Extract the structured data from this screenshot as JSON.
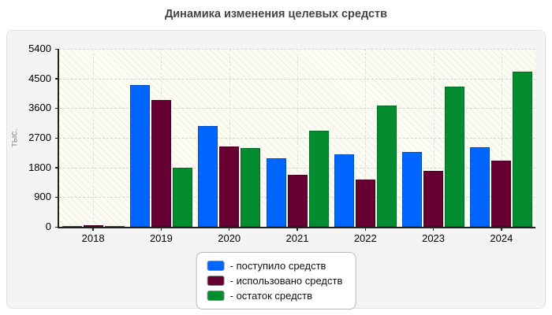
{
  "title": "Динамика изменения целевых средств",
  "y_axis_label": "тыс.",
  "colors": {
    "received": "#0066ff",
    "used": "#660033",
    "remainder": "#048c30",
    "axis": "#222222",
    "panel_bg": "#f4f4f4",
    "plot_bg": "#fdfdf3",
    "title_text": "#444444"
  },
  "legend": {
    "items": [
      {
        "label": "- поступило средств",
        "color": "#0066ff"
      },
      {
        "label": "- использовано средств",
        "color": "#660033"
      },
      {
        "label": "- остаток средств",
        "color": "#048c30"
      }
    ]
  },
  "chart_data": {
    "type": "bar",
    "title": "Динамика изменения целевых средств",
    "categories": [
      "2018",
      "2019",
      "2020",
      "2021",
      "2022",
      "2023",
      "2024"
    ],
    "series": [
      {
        "name": "поступило средств",
        "color": "#0066ff",
        "values": [
          30,
          4300,
          3050,
          2090,
          2210,
          2280,
          2420
        ]
      },
      {
        "name": "использовано средств",
        "color": "#660033",
        "values": [
          50,
          3850,
          2430,
          1570,
          1440,
          1700,
          2000
        ]
      },
      {
        "name": "остаток средств",
        "color": "#048c30",
        "values": [
          35,
          1800,
          2390,
          2910,
          3670,
          4250,
          4700
        ]
      }
    ],
    "xlabel": "",
    "ylabel": "тыс.",
    "ylim": [
      0,
      5400
    ],
    "yticks": [
      0,
      900,
      1800,
      2700,
      3600,
      4500,
      5400
    ],
    "grid": true,
    "legend_position": "bottom-center"
  }
}
